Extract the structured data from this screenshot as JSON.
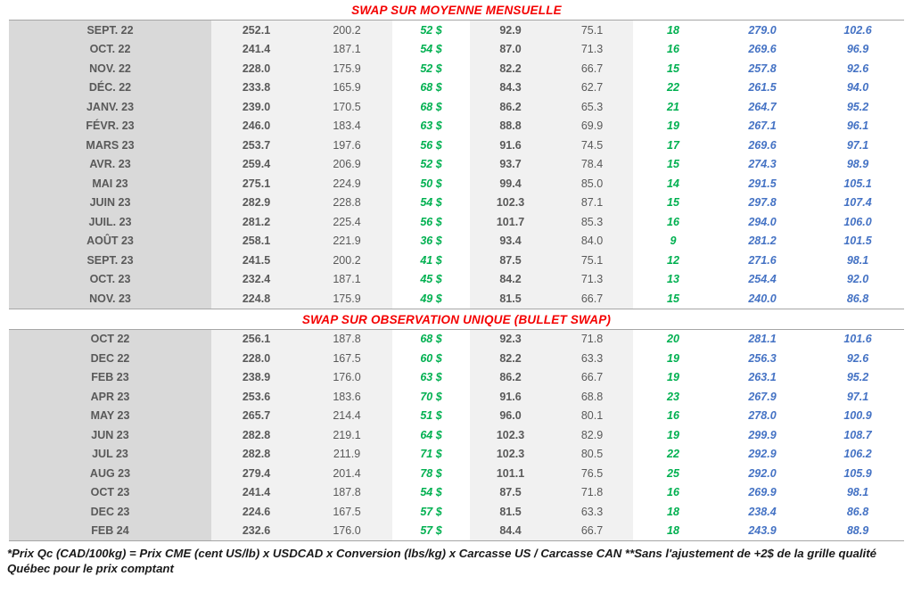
{
  "sections": [
    {
      "title": "SWAP SUR MOYENNE MENSUELLE",
      "rows": [
        {
          "month": "SEPT. 22",
          "values": [
            "252.1",
            "200.2",
            "52 $",
            "92.9",
            "75.1",
            "18",
            "279.0",
            "102.6"
          ]
        },
        {
          "month": "OCT. 22",
          "values": [
            "241.4",
            "187.1",
            "54 $",
            "87.0",
            "71.3",
            "16",
            "269.6",
            "96.9"
          ]
        },
        {
          "month": "NOV. 22",
          "values": [
            "228.0",
            "175.9",
            "52 $",
            "82.2",
            "66.7",
            "15",
            "257.8",
            "92.6"
          ]
        },
        {
          "month": "DÉC. 22",
          "values": [
            "233.8",
            "165.9",
            "68 $",
            "84.3",
            "62.7",
            "22",
            "261.5",
            "94.0"
          ]
        },
        {
          "month": "JANV. 23",
          "values": [
            "239.0",
            "170.5",
            "68 $",
            "86.2",
            "65.3",
            "21",
            "264.7",
            "95.2"
          ]
        },
        {
          "month": "FÉVR. 23",
          "values": [
            "246.0",
            "183.4",
            "63 $",
            "88.8",
            "69.9",
            "19",
            "267.1",
            "96.1"
          ]
        },
        {
          "month": "MARS 23",
          "values": [
            "253.7",
            "197.6",
            "56 $",
            "91.6",
            "74.5",
            "17",
            "269.6",
            "97.1"
          ]
        },
        {
          "month": "AVR. 23",
          "values": [
            "259.4",
            "206.9",
            "52 $",
            "93.7",
            "78.4",
            "15",
            "274.3",
            "98.9"
          ]
        },
        {
          "month": "MAI 23",
          "values": [
            "275.1",
            "224.9",
            "50 $",
            "99.4",
            "85.0",
            "14",
            "291.5",
            "105.1"
          ]
        },
        {
          "month": "JUIN 23",
          "values": [
            "282.9",
            "228.8",
            "54 $",
            "102.3",
            "87.1",
            "15",
            "297.8",
            "107.4"
          ]
        },
        {
          "month": "JUIL. 23",
          "values": [
            "281.2",
            "225.4",
            "56 $",
            "101.7",
            "85.3",
            "16",
            "294.0",
            "106.0"
          ]
        },
        {
          "month": "AOÛT 23",
          "values": [
            "258.1",
            "221.9",
            "36 $",
            "93.4",
            "84.0",
            "9",
            "281.2",
            "101.5"
          ]
        },
        {
          "month": "SEPT. 23",
          "values": [
            "241.5",
            "200.2",
            "41 $",
            "87.5",
            "75.1",
            "12",
            "271.6",
            "98.1"
          ]
        },
        {
          "month": "OCT. 23",
          "values": [
            "232.4",
            "187.1",
            "45 $",
            "84.2",
            "71.3",
            "13",
            "254.4",
            "92.0"
          ]
        },
        {
          "month": "NOV. 23",
          "values": [
            "224.8",
            "175.9",
            "49 $",
            "81.5",
            "66.7",
            "15",
            "240.0",
            "86.8"
          ]
        }
      ]
    },
    {
      "title": "SWAP SUR OBSERVATION UNIQUE (BULLET SWAP)",
      "rows": [
        {
          "month": "OCT 22",
          "values": [
            "256.1",
            "187.8",
            "68 $",
            "92.3",
            "71.8",
            "20",
            "281.1",
            "101.6"
          ]
        },
        {
          "month": "DEC 22",
          "values": [
            "228.0",
            "167.5",
            "60 $",
            "82.2",
            "63.3",
            "19",
            "256.3",
            "92.6"
          ]
        },
        {
          "month": "FEB 23",
          "values": [
            "238.9",
            "176.0",
            "63 $",
            "86.2",
            "66.7",
            "19",
            "263.1",
            "95.2"
          ]
        },
        {
          "month": "APR 23",
          "values": [
            "253.6",
            "183.6",
            "70 $",
            "91.6",
            "68.8",
            "23",
            "267.9",
            "97.1"
          ]
        },
        {
          "month": "MAY 23",
          "values": [
            "265.7",
            "214.4",
            "51 $",
            "96.0",
            "80.1",
            "16",
            "278.0",
            "100.9"
          ]
        },
        {
          "month": "JUN 23",
          "values": [
            "282.8",
            "219.1",
            "64 $",
            "102.3",
            "82.9",
            "19",
            "299.9",
            "108.7"
          ]
        },
        {
          "month": "JUL 23",
          "values": [
            "282.8",
            "211.9",
            "71 $",
            "102.3",
            "80.5",
            "22",
            "292.9",
            "106.2"
          ]
        },
        {
          "month": "AUG 23",
          "values": [
            "279.4",
            "201.4",
            "78 $",
            "101.1",
            "76.5",
            "25",
            "292.0",
            "105.9"
          ]
        },
        {
          "month": "OCT 23",
          "values": [
            "241.4",
            "187.8",
            "54 $",
            "87.5",
            "71.8",
            "16",
            "269.9",
            "98.1"
          ]
        },
        {
          "month": "DEC 23",
          "values": [
            "224.6",
            "167.5",
            "57 $",
            "81.5",
            "63.3",
            "18",
            "238.4",
            "86.8"
          ]
        },
        {
          "month": "FEB 24",
          "values": [
            "232.6",
            "176.0",
            "57 $",
            "84.4",
            "66.7",
            "18",
            "243.9",
            "88.9"
          ]
        }
      ]
    }
  ],
  "footnote": "*Prix Qc (CAD/100kg) = Prix CME (cent US/lb) x USDCAD x Conversion (lbs/kg) x Carcasse US / Carcasse CAN **Sans l'ajustement de +2$ de la grille qualité Québec pour le prix comptant",
  "colors": {
    "title_red": "#f40000",
    "green": "#00b050",
    "blue": "#4472c4",
    "dark_gray_text": "#595959",
    "month_column_bg": "#d9d9d9",
    "shaded_column_bg": "#f1f1f1",
    "table_border": "#a6a6a6"
  }
}
